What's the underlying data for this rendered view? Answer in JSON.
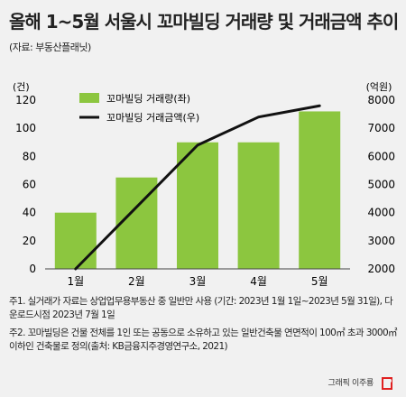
{
  "header": {
    "title": "올해 1~5월 서울시 꼬마빌딩 거래량 및 거래금액 추이",
    "source": "(자료: 부동산플래닛)"
  },
  "chart_data": {
    "type": "bar",
    "categories": [
      "1월",
      "2월",
      "3월",
      "4월",
      "5월"
    ],
    "series": [
      {
        "name": "꼬마빌딩 거래량(좌)",
        "type": "bar",
        "axis": "left",
        "values": [
          40,
          65,
          90,
          90,
          112
        ]
      },
      {
        "name": "꼬마빌딩 거래금액(우)",
        "type": "line",
        "axis": "right",
        "values": [
          2000,
          4200,
          6400,
          7400,
          7800
        ]
      }
    ],
    "left_axis": {
      "unit": "(건)",
      "min": 0,
      "max": 120,
      "ticks": [
        0,
        20,
        40,
        60,
        80,
        100,
        120
      ]
    },
    "right_axis": {
      "unit": "(억원)",
      "min": 2000,
      "max": 8000,
      "ticks": [
        2000,
        3000,
        4000,
        5000,
        6000,
        7000,
        8000
      ]
    },
    "legend_position": "top-left",
    "grid": false,
    "colors": {
      "bar": "#8cc63f",
      "line": "#111111"
    }
  },
  "notes": [
    "주1. 실거래가 자료는 상업업무용부동산 중 일반만 사용 (기간: 2023년 1월 1일~2023년 5월 31일), 다운로드시점 2023년 7월 1일",
    "주2. 꼬마빌딩은 건물 전체를 1인 또는 공동으로 소유하고 있는 일반건축물 연면적이 100㎡ 초과 3000㎡이하인 건축물로 정의(출처: KB금융지주경영연구소, 2021)"
  ],
  "credit": "그래픽 이주룡"
}
